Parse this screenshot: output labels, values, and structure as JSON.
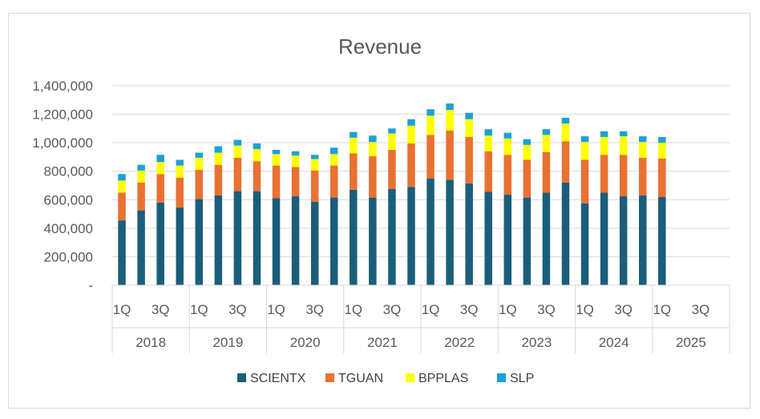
{
  "chart_data": {
    "type": "bar",
    "stacked": true,
    "title": "Revenue",
    "xlabel": "",
    "ylabel": "",
    "ylim": [
      0,
      1400000
    ],
    "yticks": [
      0,
      200000,
      400000,
      600000,
      800000,
      1000000,
      1200000,
      1400000
    ],
    "ytick_labels": [
      "-",
      "200,000",
      "400,000",
      "600,000",
      "800,000",
      "1,000,000",
      "1,200,000",
      "1,400,000"
    ],
    "grid": true,
    "legend_position": "bottom",
    "years": [
      "2018",
      "2019",
      "2020",
      "2021",
      "2022",
      "2023",
      "2024",
      "2025"
    ],
    "quarter_labels": [
      "1Q",
      "3Q"
    ],
    "categories": [
      "2018 Q1",
      "2018 Q2",
      "2018 Q3",
      "2018 Q4",
      "2019 Q1",
      "2019 Q2",
      "2019 Q3",
      "2019 Q4",
      "2020 Q1",
      "2020 Q2",
      "2020 Q3",
      "2020 Q4",
      "2021 Q1",
      "2021 Q2",
      "2021 Q3",
      "2021 Q4",
      "2022 Q1",
      "2022 Q2",
      "2022 Q3",
      "2022 Q4",
      "2023 Q1",
      "2023 Q2",
      "2023 Q3",
      "2023 Q4",
      "2024 Q1",
      "2024 Q2",
      "2024 Q3",
      "2024 Q4",
      "2025 Q1",
      "2025 Q2",
      "2025 Q3",
      "2025 Q4"
    ],
    "series": [
      {
        "name": "SCIENTX",
        "color": "#1b5e7a",
        "values": [
          455000,
          525000,
          580000,
          545000,
          605000,
          630000,
          660000,
          660000,
          610000,
          625000,
          585000,
          615000,
          670000,
          615000,
          675000,
          690000,
          750000,
          740000,
          715000,
          655000,
          635000,
          615000,
          650000,
          720000,
          575000,
          650000,
          625000,
          630000,
          620000,
          null,
          null,
          null
        ]
      },
      {
        "name": "TGUAN",
        "color": "#e97132",
        "values": [
          195000,
          195000,
          200000,
          210000,
          205000,
          215000,
          235000,
          210000,
          230000,
          205000,
          220000,
          225000,
          255000,
          290000,
          275000,
          305000,
          305000,
          345000,
          325000,
          285000,
          280000,
          265000,
          285000,
          290000,
          305000,
          265000,
          290000,
          265000,
          270000,
          null,
          null,
          null
        ]
      },
      {
        "name": "BPPLAS",
        "color": "#ffff00",
        "values": [
          85000,
          85000,
          85000,
          85000,
          85000,
          85000,
          85000,
          85000,
          80000,
          80000,
          80000,
          80000,
          110000,
          100000,
          115000,
          125000,
          135000,
          145000,
          125000,
          110000,
          115000,
          105000,
          120000,
          125000,
          125000,
          125000,
          130000,
          110000,
          110000,
          null,
          null,
          null
        ]
      },
      {
        "name": "SLP",
        "color": "#1ca0d8",
        "values": [
          45000,
          40000,
          50000,
          40000,
          35000,
          45000,
          40000,
          40000,
          30000,
          30000,
          30000,
          45000,
          40000,
          45000,
          35000,
          45000,
          45000,
          45000,
          45000,
          45000,
          40000,
          40000,
          40000,
          40000,
          40000,
          40000,
          35000,
          40000,
          40000,
          null,
          null,
          null
        ]
      }
    ]
  }
}
